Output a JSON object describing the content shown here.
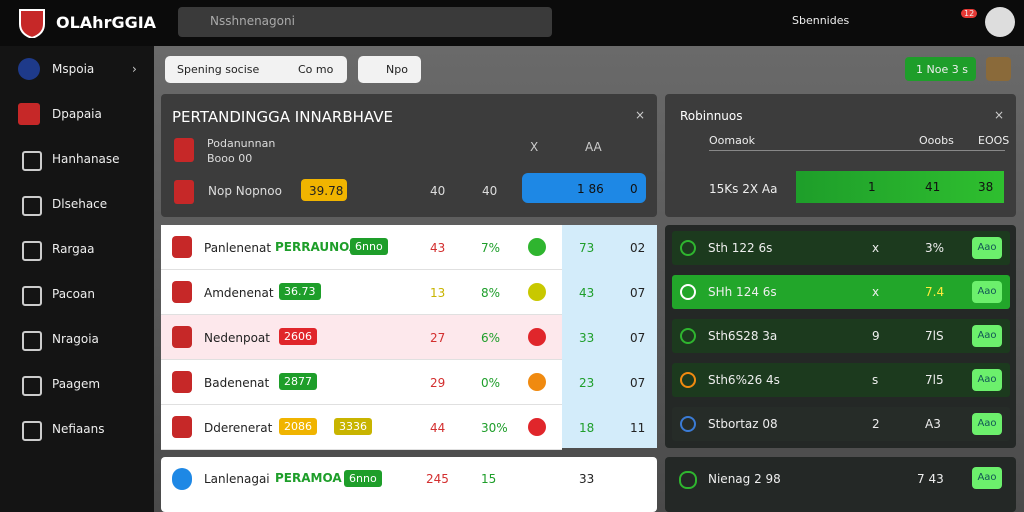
{
  "header": {
    "brand": "OLAhrGGIA",
    "search": "Nsshnenagoni",
    "status": "Sbennides",
    "badge": "12"
  },
  "sidebar": [
    "Mspoia",
    "Dpapaia",
    "Hanhanase",
    "Dlsehace",
    "Rargaa",
    "Pacoan",
    "Nragoia",
    "Paagem",
    "Nefiaans"
  ],
  "toolbar": {
    "filter": "Spening socise",
    "mode": "Co mo",
    "action": "Npo",
    "live": "1 Noe 3 s"
  },
  "match": {
    "title": "PERTANDINGGA INNARBHAVE",
    "team": "Podanunnan",
    "status": "Booo 00",
    "label": "Nop  Nopnoo",
    "odds": "39.78",
    "col1": "X",
    "col2": "AA",
    "score1": "40",
    "score2": "40",
    "home": "1 86",
    "away": "0"
  },
  "stats": {
    "title": "Robinnuos",
    "row_label": "Oomaok",
    "col1": "Ooobs",
    "col2": "EOOS",
    "name": "15Ks 2X Aa",
    "v1": "1",
    "v2": "41",
    "v3": "38"
  },
  "table": {
    "rows": [
      {
        "name": "Panlenenat",
        "tag": "PERRAUNOA",
        "badges": [
          {
            "text": "6nno",
            "color": "#1e9e2a"
          }
        ],
        "n1": "43",
        "n2": "7%",
        "n3": "73",
        "n4": "02",
        "n1_color": "#d32f2f",
        "icon_color": "#2fb52f",
        "bg": "#ffffff"
      },
      {
        "name": "Amdenenat",
        "badges": [
          {
            "text": "36.73",
            "color": "#1e9e2a"
          }
        ],
        "n1": "13",
        "n2": "8%",
        "n3": "43",
        "n4": "07",
        "n1_color": "#c8b400",
        "icon_color": "#c8c800",
        "bg": "#ffffff"
      },
      {
        "name": "Nedenpoat",
        "badges": [
          {
            "text": "2606",
            "color": "#e0262b"
          }
        ],
        "n1": "27",
        "n2": "6%",
        "n3": "33",
        "n4": "07",
        "n1_color": "#d32f2f",
        "icon_color": "#e0262b",
        "bg": "#fde8ec"
      },
      {
        "name": "Badenenat",
        "badges": [
          {
            "text": "2877",
            "color": "#1e9e2a"
          }
        ],
        "n1": "29",
        "n2": "0%",
        "n3": "23",
        "n4": "07",
        "n1_color": "#d32f2f",
        "icon_color": "#f08a10",
        "bg": "#ffffff"
      },
      {
        "name": "Dderenerat",
        "badges": [
          {
            "text": "2086",
            "color": "#f0b400"
          },
          {
            "text": "3336",
            "color": "#c8b400"
          }
        ],
        "n1": "44",
        "n2": "30%",
        "n3": "18",
        "n4": "11",
        "n1_color": "#d32f2f",
        "icon_color": "#e0262b",
        "bg": "#ffffff"
      }
    ]
  },
  "next": {
    "name": "Lanlenagai",
    "tag": "PERAMOA",
    "badge": "6nno",
    "n1": "245",
    "n2": "15",
    "n3": "33"
  },
  "list": {
    "rows": [
      {
        "name": "Sth 122 6s",
        "col": "x",
        "val": "3%",
        "btn": "Aao",
        "bg": "#1c3a1e",
        "icon": "#2fb52f"
      },
      {
        "name": "SHh 124 6s",
        "col": "x",
        "val": "7.4",
        "btn": "Aao",
        "bg": "#22a62a",
        "icon": "#ffffff"
      },
      {
        "name": "Sth6S28 3a",
        "col": "9",
        "val": "7lS",
        "btn": "Aao",
        "bg": "#1c3a1e",
        "icon": "#2fb52f"
      },
      {
        "name": "Sth6%26 4s",
        "col": "s",
        "val": "7l5",
        "btn": "Aao",
        "bg": "#1c3a1e",
        "icon": "#f08a10"
      },
      {
        "name": "Stbortaz 08",
        "col": "2",
        "val": "A3",
        "btn": "Aao",
        "bg": "#262c28",
        "icon": "#3a7bd5"
      }
    ]
  },
  "next_list": {
    "name": "Nienag 2 98",
    "val": "7 43",
    "btn": "Aao"
  }
}
